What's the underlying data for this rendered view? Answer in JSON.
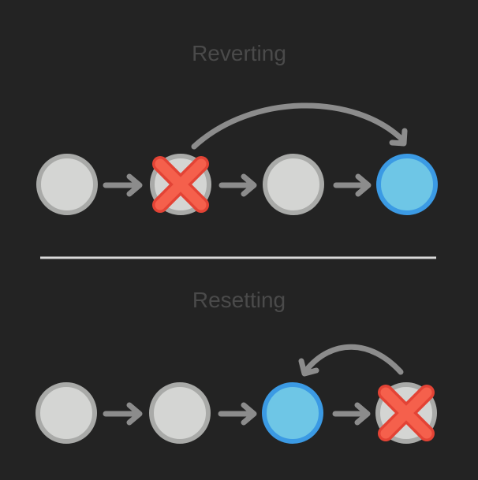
{
  "sections": [
    {
      "title": "Reverting",
      "commits": [
        {
          "state": "normal"
        },
        {
          "state": "reverted"
        },
        {
          "state": "normal"
        },
        {
          "state": "head"
        }
      ],
      "curved_arrow": {
        "from_commit": 2,
        "to_commit": 4
      }
    },
    {
      "title": "Resetting",
      "commits": [
        {
          "state": "normal"
        },
        {
          "state": "normal"
        },
        {
          "state": "head"
        },
        {
          "state": "reverted"
        }
      ],
      "curved_arrow": {
        "from_commit": 4,
        "to_commit": 3
      }
    }
  ],
  "colors": {
    "background": "#232323",
    "title_text": "#4a4a4a",
    "commit_fill": "#d4d5d3",
    "commit_stroke": "#a9aaa8",
    "head_fill": "#6ec6e6",
    "head_stroke": "#3b9ae4",
    "arrow": "#8c8c8c",
    "cross": "#f5604c",
    "cross_outline": "#e34335",
    "divider": "#d9d9d9"
  },
  "icons": {
    "arrow": "right-arrow-icon",
    "cross": "cross-icon",
    "curved_arrow": "curved-arrow-icon"
  }
}
